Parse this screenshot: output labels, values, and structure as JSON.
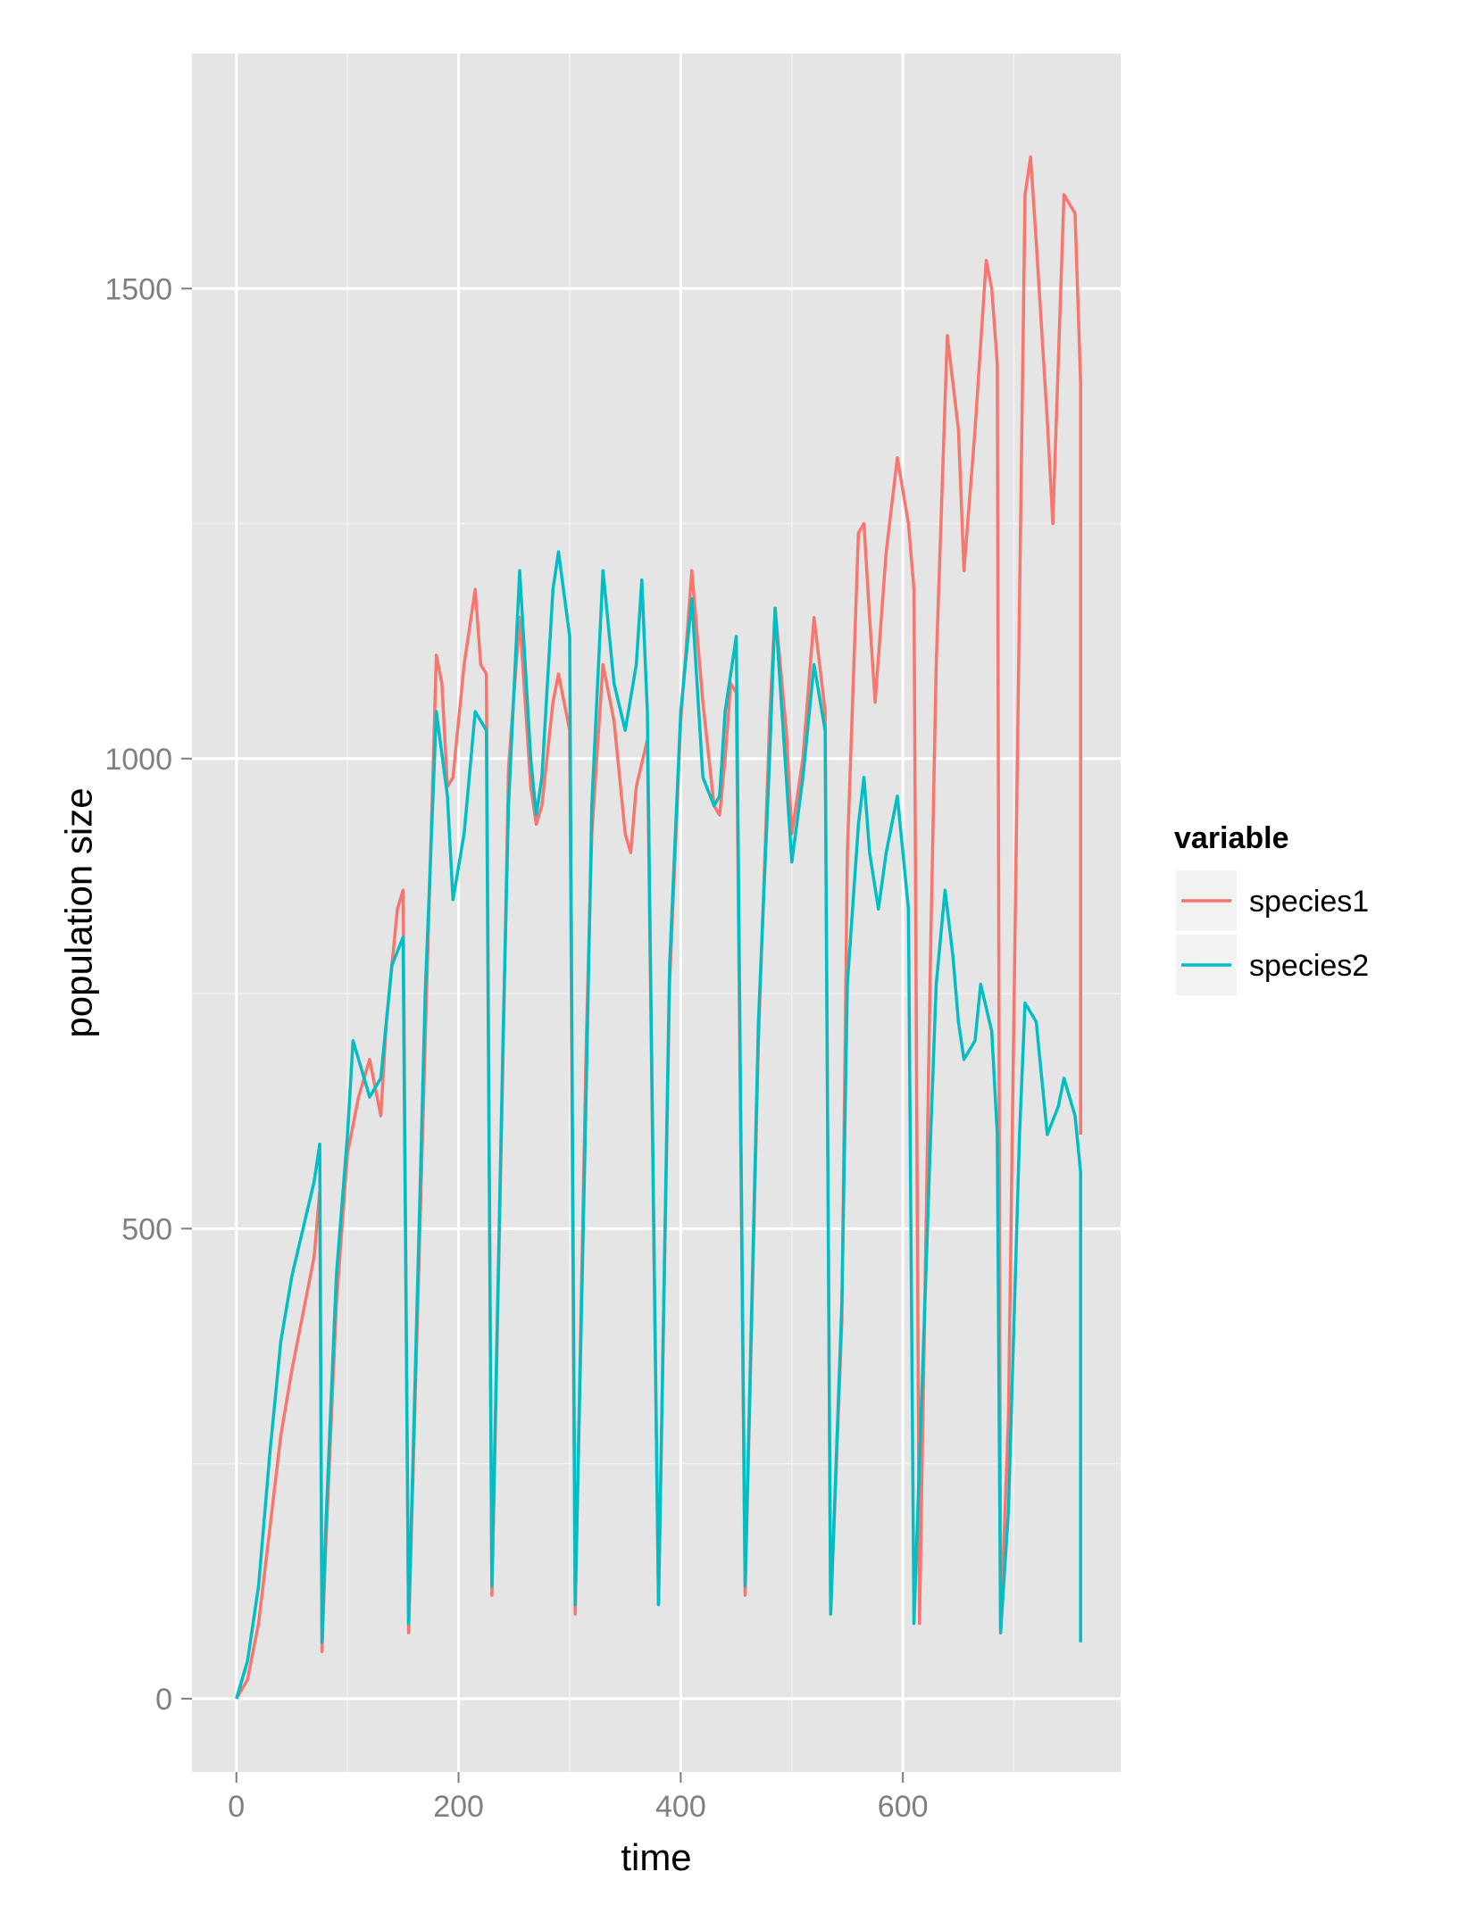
{
  "chart_data": {
    "type": "line",
    "xlabel": "time",
    "ylabel": "population size",
    "xlim": [
      -40,
      796
    ],
    "ylim": [
      -78,
      1750
    ],
    "x_ticks": [
      0,
      200,
      400,
      600
    ],
    "y_ticks": [
      0,
      500,
      1000,
      1500
    ],
    "x_tick_labels": [
      "0",
      "200",
      "400",
      "600"
    ],
    "y_tick_labels": [
      "0",
      "500",
      "1000",
      "1500"
    ],
    "grid": true,
    "legend": {
      "title": "variable",
      "position": "right"
    },
    "colors": {
      "panel": "#e5e5e5",
      "grid_major": "#ffffff",
      "grid_minor": "#f2f2f2",
      "legend_key": "#f2f2f2"
    },
    "series": [
      {
        "name": "species1",
        "color": "#f8766d",
        "points": [
          [
            0,
            0
          ],
          [
            10,
            20
          ],
          [
            20,
            80
          ],
          [
            30,
            180
          ],
          [
            40,
            280
          ],
          [
            50,
            350
          ],
          [
            60,
            410
          ],
          [
            70,
            470
          ],
          [
            75,
            540
          ],
          [
            77,
            50
          ],
          [
            80,
            150
          ],
          [
            90,
            420
          ],
          [
            100,
            580
          ],
          [
            110,
            640
          ],
          [
            120,
            680
          ],
          [
            130,
            620
          ],
          [
            135,
            720
          ],
          [
            140,
            780
          ],
          [
            145,
            840
          ],
          [
            150,
            860
          ],
          [
            155,
            70
          ],
          [
            160,
            280
          ],
          [
            170,
            700
          ],
          [
            180,
            1110
          ],
          [
            185,
            1080
          ],
          [
            190,
            970
          ],
          [
            195,
            980
          ],
          [
            205,
            1100
          ],
          [
            215,
            1180
          ],
          [
            220,
            1100
          ],
          [
            225,
            1090
          ],
          [
            230,
            110
          ],
          [
            240,
            680
          ],
          [
            245,
            990
          ],
          [
            255,
            1150
          ],
          [
            265,
            970
          ],
          [
            270,
            930
          ],
          [
            275,
            950
          ],
          [
            285,
            1060
          ],
          [
            290,
            1090
          ],
          [
            300,
            1030
          ],
          [
            305,
            90
          ],
          [
            315,
            700
          ],
          [
            320,
            920
          ],
          [
            330,
            1100
          ],
          [
            340,
            1040
          ],
          [
            350,
            920
          ],
          [
            355,
            900
          ],
          [
            360,
            970
          ],
          [
            370,
            1020
          ],
          [
            380,
            100
          ],
          [
            390,
            760
          ],
          [
            400,
            1040
          ],
          [
            410,
            1200
          ],
          [
            420,
            1060
          ],
          [
            430,
            950
          ],
          [
            435,
            940
          ],
          [
            440,
            1000
          ],
          [
            445,
            1080
          ],
          [
            450,
            1070
          ],
          [
            458,
            110
          ],
          [
            470,
            700
          ],
          [
            480,
            1040
          ],
          [
            485,
            1160
          ],
          [
            495,
            1030
          ],
          [
            500,
            920
          ],
          [
            510,
            1000
          ],
          [
            520,
            1150
          ],
          [
            530,
            1050
          ],
          [
            535,
            90
          ],
          [
            545,
            400
          ],
          [
            550,
            900
          ],
          [
            560,
            1240
          ],
          [
            565,
            1250
          ],
          [
            570,
            1150
          ],
          [
            575,
            1060
          ],
          [
            585,
            1220
          ],
          [
            595,
            1320
          ],
          [
            605,
            1250
          ],
          [
            610,
            1180
          ],
          [
            615,
            80
          ],
          [
            625,
            800
          ],
          [
            630,
            1100
          ],
          [
            640,
            1450
          ],
          [
            650,
            1350
          ],
          [
            655,
            1200
          ],
          [
            665,
            1350
          ],
          [
            675,
            1530
          ],
          [
            680,
            1500
          ],
          [
            685,
            1420
          ],
          [
            688,
            70
          ],
          [
            695,
            300
          ],
          [
            710,
            1600
          ],
          [
            715,
            1640
          ],
          [
            720,
            1550
          ],
          [
            730,
            1360
          ],
          [
            735,
            1250
          ],
          [
            745,
            1600
          ],
          [
            755,
            1580
          ],
          [
            760,
            1400
          ],
          [
            760,
            600
          ]
        ]
      },
      {
        "name": "species2",
        "color": "#00bfc4",
        "points": [
          [
            0,
            0
          ],
          [
            10,
            40
          ],
          [
            20,
            120
          ],
          [
            30,
            260
          ],
          [
            40,
            380
          ],
          [
            50,
            450
          ],
          [
            60,
            500
          ],
          [
            70,
            550
          ],
          [
            75,
            590
          ],
          [
            77,
            60
          ],
          [
            80,
            170
          ],
          [
            90,
            450
          ],
          [
            100,
            600
          ],
          [
            105,
            700
          ],
          [
            110,
            680
          ],
          [
            120,
            640
          ],
          [
            130,
            660
          ],
          [
            140,
            780
          ],
          [
            150,
            810
          ],
          [
            155,
            80
          ],
          [
            160,
            300
          ],
          [
            170,
            750
          ],
          [
            180,
            1050
          ],
          [
            190,
            960
          ],
          [
            195,
            850
          ],
          [
            205,
            920
          ],
          [
            215,
            1050
          ],
          [
            225,
            1030
          ],
          [
            230,
            120
          ],
          [
            240,
            700
          ],
          [
            245,
            950
          ],
          [
            255,
            1200
          ],
          [
            265,
            1000
          ],
          [
            270,
            940
          ],
          [
            275,
            980
          ],
          [
            285,
            1180
          ],
          [
            290,
            1220
          ],
          [
            300,
            1130
          ],
          [
            305,
            100
          ],
          [
            315,
            650
          ],
          [
            320,
            950
          ],
          [
            330,
            1200
          ],
          [
            340,
            1080
          ],
          [
            350,
            1030
          ],
          [
            360,
            1100
          ],
          [
            365,
            1190
          ],
          [
            370,
            1050
          ],
          [
            380,
            100
          ],
          [
            390,
            780
          ],
          [
            400,
            1050
          ],
          [
            410,
            1170
          ],
          [
            420,
            980
          ],
          [
            430,
            950
          ],
          [
            435,
            960
          ],
          [
            440,
            1050
          ],
          [
            450,
            1130
          ],
          [
            458,
            120
          ],
          [
            470,
            720
          ],
          [
            480,
            1000
          ],
          [
            485,
            1160
          ],
          [
            495,
            980
          ],
          [
            500,
            890
          ],
          [
            510,
            980
          ],
          [
            520,
            1100
          ],
          [
            530,
            1030
          ],
          [
            535,
            90
          ],
          [
            545,
            420
          ],
          [
            550,
            760
          ],
          [
            560,
            930
          ],
          [
            565,
            980
          ],
          [
            570,
            900
          ],
          [
            578,
            840
          ],
          [
            585,
            900
          ],
          [
            595,
            960
          ],
          [
            605,
            840
          ],
          [
            610,
            80
          ],
          [
            625,
            600
          ],
          [
            630,
            760
          ],
          [
            638,
            860
          ],
          [
            645,
            790
          ],
          [
            650,
            720
          ],
          [
            655,
            680
          ],
          [
            665,
            700
          ],
          [
            670,
            760
          ],
          [
            680,
            710
          ],
          [
            685,
            600
          ],
          [
            688,
            70
          ],
          [
            695,
            200
          ],
          [
            705,
            600
          ],
          [
            710,
            740
          ],
          [
            720,
            720
          ],
          [
            730,
            600
          ],
          [
            740,
            630
          ],
          [
            745,
            660
          ],
          [
            755,
            620
          ],
          [
            760,
            560
          ],
          [
            760,
            60
          ]
        ]
      }
    ]
  }
}
